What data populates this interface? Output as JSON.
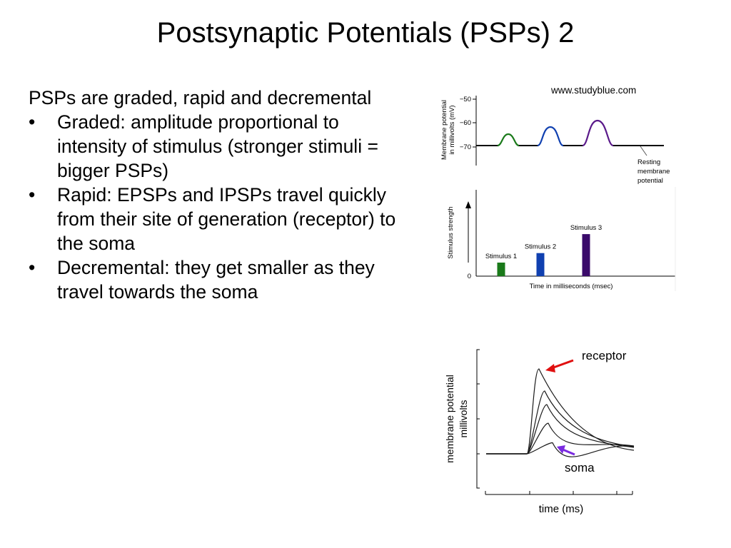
{
  "slide": {
    "title": "Postsynaptic Potentials (PSPs) 2",
    "intro": "PSPs are graded, rapid and decremental",
    "bullet_marker": "•",
    "bullets": [
      "Graded: amplitude proportional to intensity of stimulus (stronger stimuli = bigger PSPs)",
      "Rapid: EPSPs and IPSPs travel quickly from their site of generation (receptor) to the soma",
      "Decremental: they get smaller as they travel towards the soma"
    ],
    "image_credit": "www.studyblue.com"
  },
  "colors": {
    "stimulus_1": "#1a7a1a",
    "stimulus_2": "#1040b0",
    "stimulus_3": "#3a0a6a",
    "receptor_arrow": "#e01010",
    "soma_arrow": "#7a2ae0"
  },
  "chart_data": [
    {
      "type": "line",
      "ylabel_lines": [
        "Membrane potential",
        "in millivolts (mV)"
      ],
      "yticks": [
        "−50",
        "−60",
        "−70"
      ],
      "ylim": [
        -75,
        -50
      ],
      "resting_potential": -70,
      "series": [
        {
          "color": "#1a7a1a",
          "peak": -65
        },
        {
          "color": "#1040b0",
          "peak": -61
        },
        {
          "color": "#5a1a8a",
          "peak": -60
        }
      ],
      "annotation_lines": [
        "Resting",
        "membrane",
        "potential"
      ]
    },
    {
      "type": "bar",
      "ylabel": "Stimulus strength",
      "xlabel": "Time in milliseconds (msec)",
      "ytick_zero": "0",
      "categories": [
        "Stimulus 1",
        "Stimulus 2",
        "Stimulus 3"
      ],
      "values": [
        1,
        1.7,
        3.1
      ],
      "colors": [
        "#1a7a1a",
        "#1040b0",
        "#3a0a6a"
      ]
    },
    {
      "type": "line",
      "ylabel_lines": [
        "membrane potential",
        "millivolts"
      ],
      "xlabel": "time (ms)",
      "series_peaks": [
        1.0,
        0.74,
        0.58,
        0.36,
        0.13
      ],
      "annotations": [
        "receptor",
        "soma"
      ]
    }
  ]
}
